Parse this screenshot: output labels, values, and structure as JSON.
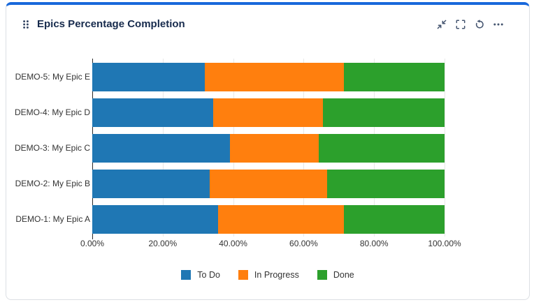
{
  "gadget": {
    "title": "Epics Percentage Completion",
    "accent_color": "#1868db",
    "icons": {
      "drag_handle": "drag-handle-dots",
      "minimize": "arrows-collapse-diagonal",
      "fullscreen": "corner-brackets",
      "refresh": "rotate-counterclockwise",
      "more": "ellipsis-horizontal"
    }
  },
  "chart_data": {
    "type": "bar",
    "orientation": "horizontal",
    "stacked": true,
    "title": "Epics Percentage Completion",
    "categories": [
      "DEMO-5: My Epic E",
      "DEMO-4: My Epic D",
      "DEMO-3: My Epic C",
      "DEMO-2: My Epic B",
      "DEMO-1: My Epic A"
    ],
    "series": [
      {
        "name": "To Do",
        "color": "#1f77b4",
        "values": [
          32.0,
          34.3,
          39.1,
          33.3,
          35.7
        ]
      },
      {
        "name": "In Progress",
        "color": "#ff7f0e",
        "values": [
          39.4,
          31.2,
          25.2,
          33.4,
          35.7
        ]
      },
      {
        "name": "Done",
        "color": "#2ca02c",
        "values": [
          28.6,
          34.5,
          35.7,
          33.3,
          28.6
        ]
      }
    ],
    "x_tick_values": [
      0,
      20,
      40,
      60,
      80,
      100
    ],
    "x_tick_labels": [
      "0.00%",
      "20.00%",
      "40.00%",
      "60.00%",
      "80.00%",
      "100.00%"
    ],
    "xlim": [
      0,
      100
    ],
    "unit": "percent",
    "grid": true,
    "legend": [
      "To Do",
      "In Progress",
      "Done"
    ],
    "legend_position": "bottom"
  }
}
